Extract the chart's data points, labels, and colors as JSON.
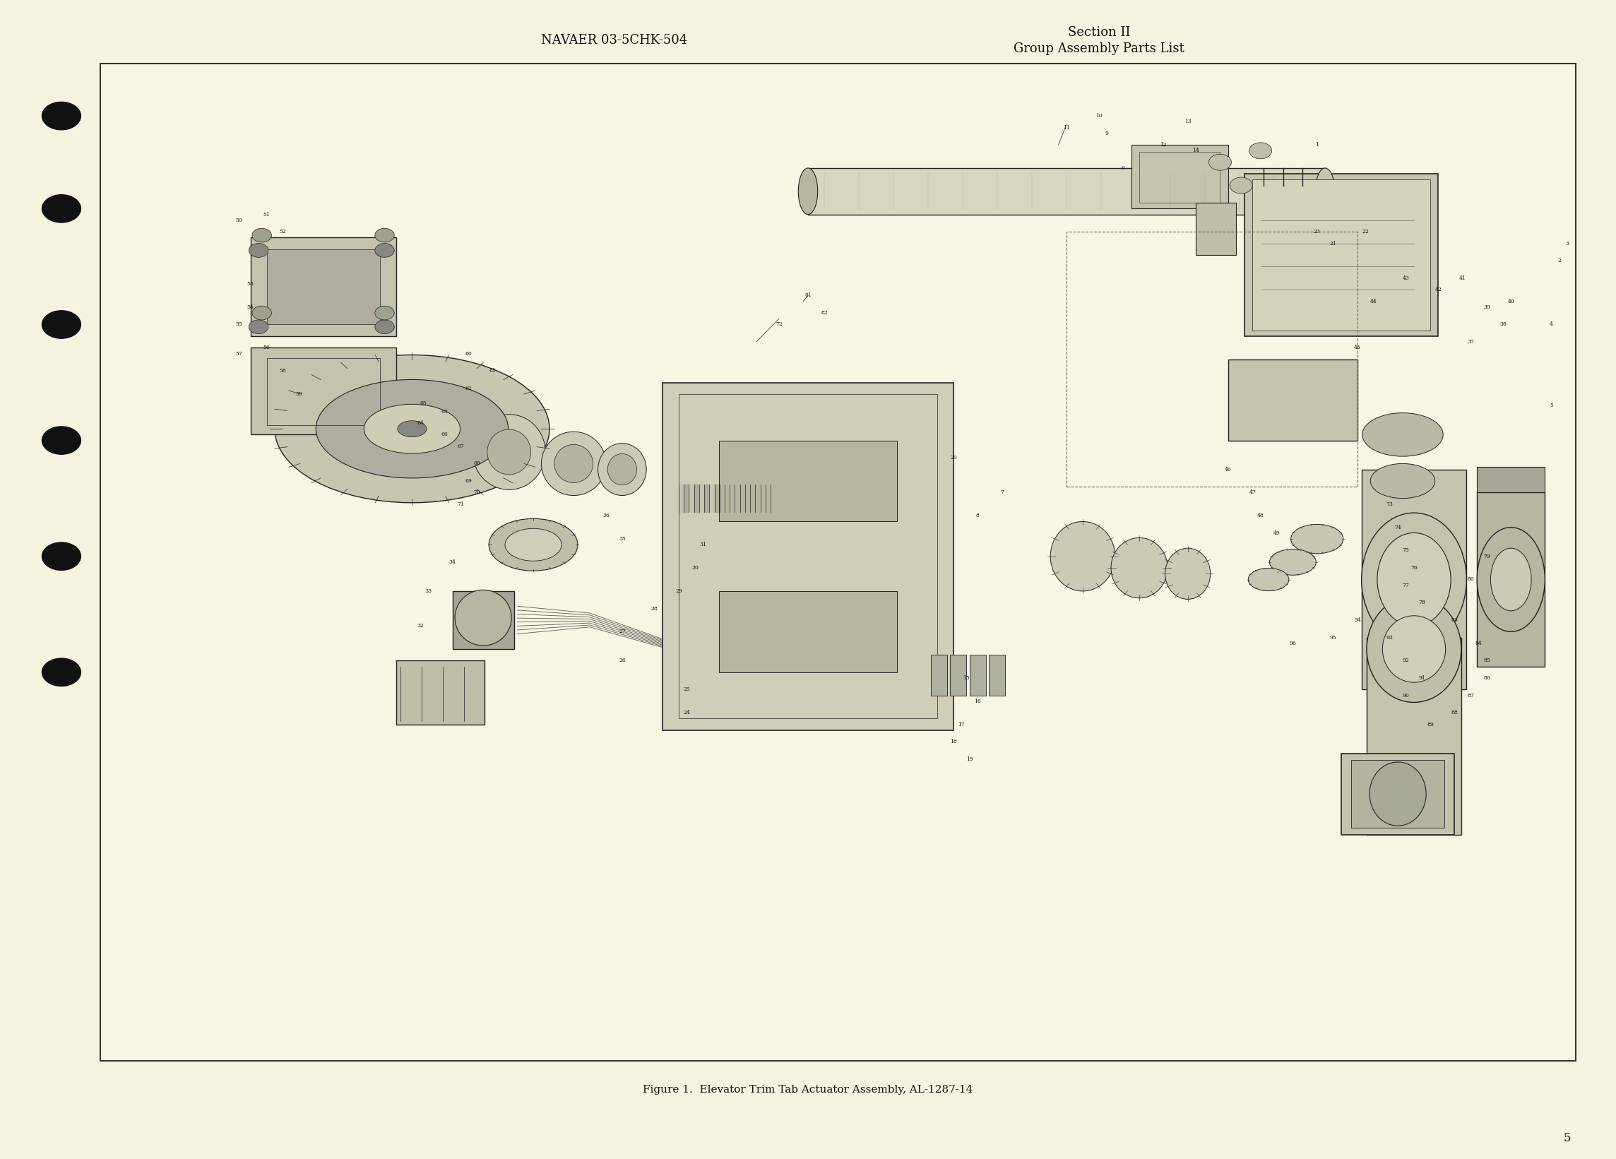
{
  "page_bg": "#f5f2e0",
  "border_color": "#222222",
  "text_color": "#111111",
  "header_left": "NAVAER 03-5CHK-504",
  "header_right_line1": "Section II",
  "header_right_line2": "Group Assembly Parts List",
  "caption": "Figure 1.  Elevator Trim Tab Actuator Assembly, AL-1287-14",
  "page_number": "5",
  "diagram_box_color": "#f8f5e4",
  "diagram_border": "#333333",
  "bullet_color": "#111111",
  "title_fontsize": 13,
  "caption_fontsize": 11,
  "page_num_fontsize": 12
}
